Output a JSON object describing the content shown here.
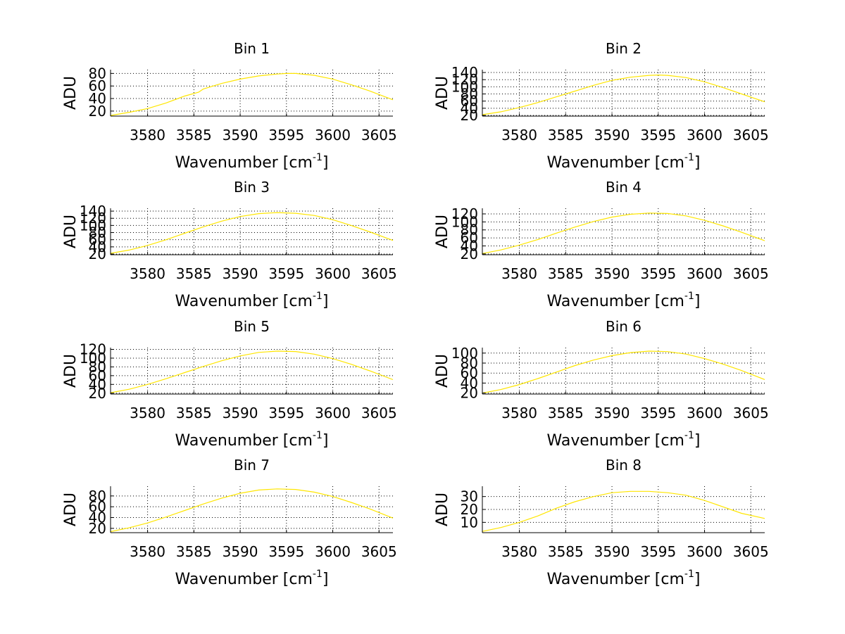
{
  "chart_data": [
    {
      "type": "line",
      "title": "Bin 1",
      "xlabel": "Wavenumber [cm",
      "xlabel_sup": "-1",
      "xlabel_close": "]",
      "ylabel": "ADU",
      "xlim": [
        3576,
        3606.5
      ],
      "ylim": [
        12,
        86
      ],
      "xticks": [
        3580,
        3585,
        3590,
        3595,
        3600,
        3605
      ],
      "yticks": [
        20,
        40,
        60,
        80
      ],
      "series": [
        {
          "name": "Bin 1",
          "color": "#ffe600",
          "x": [
            3576,
            3578,
            3580,
            3582,
            3584,
            3585.5,
            3586,
            3588,
            3590,
            3592,
            3594,
            3595,
            3596,
            3598,
            3600,
            3602,
            3604,
            3606.5
          ],
          "y": [
            13,
            18,
            24,
            33,
            44,
            50,
            55,
            64,
            71,
            76,
            79,
            80,
            80,
            77,
            71,
            62,
            52,
            38
          ]
        }
      ]
    },
    {
      "type": "line",
      "title": "Bin 2",
      "xlabel": "Wavenumber [cm",
      "xlabel_sup": "-1",
      "xlabel_close": "]",
      "ylabel": "ADU",
      "xlim": [
        3576,
        3606.5
      ],
      "ylim": [
        18,
        148
      ],
      "xticks": [
        3580,
        3585,
        3590,
        3595,
        3600,
        3605
      ],
      "yticks": [
        20,
        40,
        60,
        80,
        100,
        120,
        140
      ],
      "series": [
        {
          "name": "Bin 2",
          "color": "#ffe600",
          "x": [
            3576,
            3578,
            3580,
            3582,
            3584,
            3586,
            3588,
            3590,
            3592,
            3594,
            3595,
            3596,
            3598,
            3600,
            3602,
            3604,
            3606.5
          ],
          "y": [
            22,
            30,
            42,
            56,
            72,
            88,
            104,
            118,
            127,
            132,
            133,
            132,
            126,
            114,
            98,
            80,
            58
          ]
        }
      ]
    },
    {
      "type": "line",
      "title": "Bin 3",
      "xlabel": "Wavenumber [cm",
      "xlabel_sup": "-1",
      "xlabel_close": "]",
      "ylabel": "ADU",
      "xlim": [
        3576,
        3606.5
      ],
      "ylim": [
        18,
        148
      ],
      "xticks": [
        3580,
        3585,
        3590,
        3595,
        3600,
        3605
      ],
      "yticks": [
        20,
        40,
        60,
        80,
        100,
        120,
        140
      ],
      "series": [
        {
          "name": "Bin 3",
          "color": "#ffe600",
          "x": [
            3576,
            3578,
            3580,
            3582,
            3584,
            3586,
            3588,
            3590,
            3592,
            3594,
            3596,
            3598,
            3600,
            3602,
            3604,
            3606.5
          ],
          "y": [
            22,
            31,
            44,
            60,
            78,
            96,
            112,
            125,
            133,
            136,
            134,
            128,
            116,
            100,
            82,
            58
          ]
        }
      ]
    },
    {
      "type": "line",
      "title": "Bin 4",
      "xlabel": "Wavenumber [cm",
      "xlabel_sup": "-1",
      "xlabel_close": "]",
      "ylabel": "ADU",
      "xlim": [
        3576,
        3606.5
      ],
      "ylim": [
        18,
        134
      ],
      "xticks": [
        3580,
        3585,
        3590,
        3595,
        3600,
        3605
      ],
      "yticks": [
        20,
        40,
        60,
        80,
        100,
        120
      ],
      "series": [
        {
          "name": "Bin 4",
          "color": "#ffe600",
          "x": [
            3576,
            3578,
            3580,
            3582,
            3584,
            3586,
            3588,
            3590,
            3592,
            3594,
            3596,
            3598,
            3600,
            3602,
            3604,
            3606.5
          ],
          "y": [
            21,
            30,
            42,
            56,
            72,
            87,
            101,
            112,
            119,
            122,
            121,
            115,
            104,
            90,
            74,
            53
          ]
        }
      ]
    },
    {
      "type": "line",
      "title": "Bin 5",
      "xlabel": "Wavenumber [cm",
      "xlabel_sup": "-1",
      "xlabel_close": "]",
      "ylabel": "ADU",
      "xlim": [
        3576,
        3606.5
      ],
      "ylim": [
        18,
        124
      ],
      "xticks": [
        3580,
        3585,
        3590,
        3595,
        3600,
        3605
      ],
      "yticks": [
        20,
        40,
        60,
        80,
        100,
        120
      ],
      "series": [
        {
          "name": "Bin 5",
          "color": "#ffe600",
          "x": [
            3576,
            3578,
            3580,
            3582,
            3584,
            3586,
            3588,
            3590,
            3592,
            3594,
            3596,
            3598,
            3600,
            3602,
            3604,
            3606.5
          ],
          "y": [
            21,
            29,
            40,
            53,
            67,
            81,
            94,
            105,
            113,
            116,
            115,
            109,
            99,
            86,
            71,
            51
          ]
        }
      ]
    },
    {
      "type": "line",
      "title": "Bin 6",
      "xlabel": "Wavenumber [cm",
      "xlabel_sup": "-1",
      "xlabel_close": "]",
      "ylabel": "ADU",
      "xlim": [
        3576,
        3606.5
      ],
      "ylim": [
        18,
        111
      ],
      "xticks": [
        3580,
        3585,
        3590,
        3595,
        3600,
        3605
      ],
      "yticks": [
        20,
        40,
        60,
        80,
        100
      ],
      "series": [
        {
          "name": "Bin 6",
          "color": "#ffe600",
          "x": [
            3576,
            3578,
            3580,
            3582,
            3584,
            3586,
            3588,
            3590,
            3592,
            3594,
            3596,
            3598,
            3600,
            3602,
            3604,
            3606.5
          ],
          "y": [
            20,
            27,
            37,
            49,
            62,
            75,
            86,
            95,
            101,
            104,
            103,
            98,
            89,
            78,
            65,
            47
          ]
        }
      ]
    },
    {
      "type": "line",
      "title": "Bin 7",
      "xlabel": "Wavenumber [cm",
      "xlabel_sup": "-1",
      "xlabel_close": "]",
      "ylabel": "ADU",
      "xlim": [
        3576,
        3606.5
      ],
      "ylim": [
        12,
        98
      ],
      "xticks": [
        3580,
        3585,
        3590,
        3595,
        3600,
        3605
      ],
      "yticks": [
        20,
        40,
        60,
        80
      ],
      "series": [
        {
          "name": "Bin 7",
          "color": "#ffe600",
          "x": [
            3576,
            3578,
            3580,
            3582,
            3584,
            3586,
            3588,
            3590,
            3592,
            3594,
            3596,
            3598,
            3600,
            3602,
            3604,
            3606.5
          ],
          "y": [
            14,
            21,
            30,
            41,
            53,
            65,
            76,
            85,
            91,
            93,
            92,
            87,
            79,
            68,
            56,
            39
          ]
        }
      ]
    },
    {
      "type": "line",
      "title": "Bin 8",
      "xlabel": "Wavenumber [cm",
      "xlabel_sup": "-1",
      "xlabel_close": "]",
      "ylabel": "ADU",
      "xlim": [
        3576,
        3606.5
      ],
      "ylim": [
        2,
        38
      ],
      "xticks": [
        3580,
        3585,
        3590,
        3595,
        3600,
        3605
      ],
      "yticks": [
        10,
        20,
        30
      ],
      "series": [
        {
          "name": "Bin 8",
          "color": "#ffe600",
          "x": [
            3576,
            3578,
            3580,
            3582,
            3584,
            3586,
            3588,
            3590,
            3592,
            3594,
            3596,
            3598,
            3600,
            3602,
            3604,
            3606.5
          ],
          "y": [
            3,
            6,
            10,
            15,
            21,
            26,
            30,
            33,
            34,
            34,
            33,
            31,
            27,
            22,
            17,
            13
          ]
        }
      ]
    }
  ]
}
